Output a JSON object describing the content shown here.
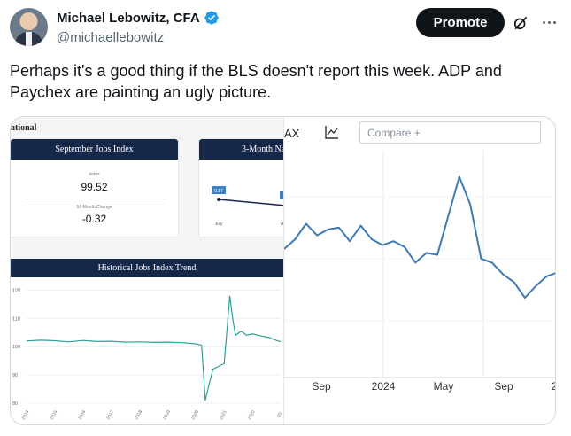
{
  "author": {
    "name": "Michael Lebowitz, CFA",
    "handle": "@michaellebowitz",
    "verified": true
  },
  "actions": {
    "promote_label": "Promote",
    "icons": [
      "grok-icon",
      "more-icon"
    ]
  },
  "tweet": {
    "text": "Perhaps it's a good thing if the BLS doesn't report this week. ADP and Paychex are painting an ugly picture."
  },
  "left_panel": {
    "title": "ational",
    "jobs_index_card": {
      "title": "September Jobs Index",
      "index_label": "Index",
      "index_value": "99.52",
      "change_label": "12-Month Change",
      "change_value": "-0.32"
    },
    "three_month_card": {
      "title": "3-Month Na",
      "badge_value": "0.17",
      "x_labels": [
        "July",
        "Au"
      ]
    },
    "historical": {
      "title": "Historical Jobs Index Trend"
    }
  },
  "right_panel": {
    "ticker_fragment": "AX",
    "compare_placeholder": "Compare +"
  },
  "chart_data": [
    {
      "type": "line",
      "title": "Historical Jobs Index Trend",
      "x": [
        2014,
        2014.5,
        2015,
        2015.5,
        2016,
        2016.5,
        2017,
        2017.5,
        2018,
        2018.5,
        2019,
        2019.5,
        2020.0,
        2020.2,
        2020.33,
        2020.45,
        2020.6,
        2020.8,
        2021.0,
        2021.2,
        2021.3,
        2021.4,
        2021.6,
        2021.8,
        2022.0,
        2022.3,
        2022.6,
        2022.9,
        2023.0
      ],
      "y": [
        102,
        102.3,
        102.1,
        101.7,
        102.2,
        101.8,
        101.9,
        101.6,
        101.7,
        101.5,
        101.6,
        101.4,
        101.0,
        100.5,
        81,
        86,
        92,
        93,
        94,
        118,
        110,
        104,
        105.5,
        104,
        104.5,
        103.8,
        103.2,
        102,
        101.8
      ],
      "x_ticks": [
        "2014",
        "2015",
        "2016",
        "2017",
        "2018",
        "2019",
        "2020",
        "2021",
        "2022",
        "20"
      ],
      "y_ticks": [
        "120",
        "110",
        "100",
        "90",
        "80"
      ],
      "ylim": [
        80,
        122
      ]
    },
    {
      "type": "line",
      "x_ticks": [
        "Sep",
        "2024",
        "May",
        "Sep",
        "2"
      ],
      "x": [
        0,
        0.04,
        0.08,
        0.12,
        0.16,
        0.2,
        0.24,
        0.28,
        0.32,
        0.36,
        0.4,
        0.44,
        0.48,
        0.52,
        0.56,
        0.6,
        0.64,
        0.68,
        0.72,
        0.76,
        0.8,
        0.84,
        0.88,
        0.92,
        0.96,
        1.0
      ],
      "y": [
        0.55,
        0.6,
        0.68,
        0.62,
        0.65,
        0.66,
        0.59,
        0.67,
        0.6,
        0.57,
        0.59,
        0.56,
        0.48,
        0.53,
        0.52,
        0.72,
        0.92,
        0.78,
        0.5,
        0.48,
        0.42,
        0.38,
        0.3,
        0.36,
        0.41,
        0.43
      ]
    }
  ]
}
